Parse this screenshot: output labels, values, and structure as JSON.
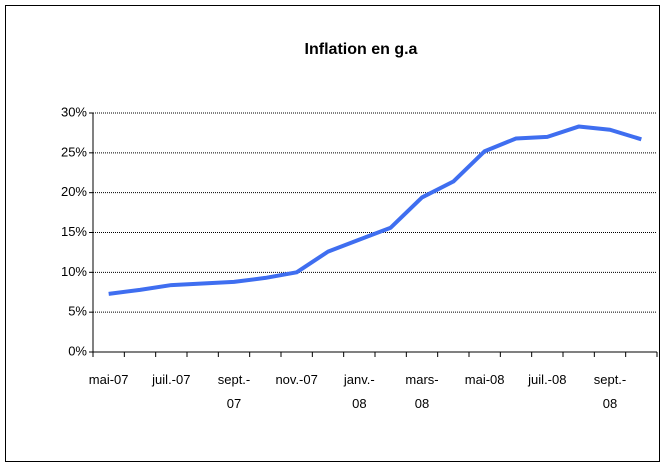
{
  "chart_data": {
    "type": "line",
    "title": "Inflation en g.a",
    "categories": [
      "mai-07",
      null,
      "juil.-07",
      null,
      "sept.-\n07",
      null,
      "nov.-07",
      null,
      "janv.-\n08",
      null,
      "mars-\n08",
      null,
      "mai-08",
      null,
      "juil.-08",
      null,
      "sept.-\n08",
      null
    ],
    "series": [
      {
        "name": "Inflation en g.a",
        "color": "#3f6ef0",
        "values": [
          7.3,
          7.8,
          8.4,
          8.6,
          8.8,
          9.3,
          10.0,
          12.6,
          14.1,
          15.6,
          19.4,
          21.4,
          25.2,
          26.8,
          27.0,
          28.3,
          27.9,
          26.7
        ]
      }
    ],
    "ylim": [
      0,
      30
    ],
    "yticks": [
      {
        "value": 0,
        "label": "0%"
      },
      {
        "value": 5,
        "label": "5%"
      },
      {
        "value": 10,
        "label": "10%"
      },
      {
        "value": 15,
        "label": "15%"
      },
      {
        "value": 20,
        "label": "20%"
      },
      {
        "value": 25,
        "label": "25%"
      },
      {
        "value": 30,
        "label": "30%"
      }
    ],
    "grid": true
  }
}
